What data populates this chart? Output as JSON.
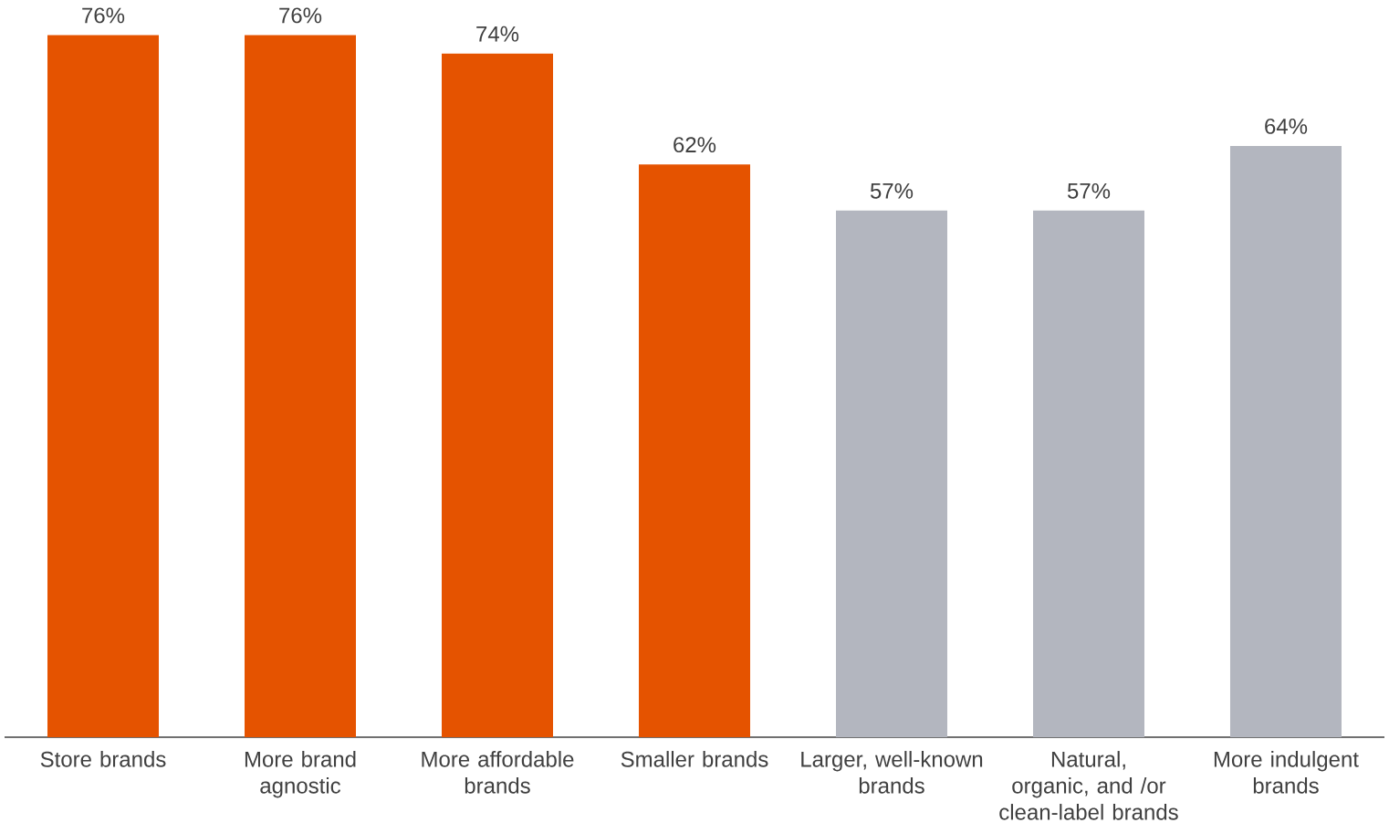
{
  "chart_data": {
    "type": "bar",
    "categories": [
      "Store brands",
      "More brand agnostic",
      "More affordable brands",
      "Smaller brands",
      "Larger, well-known brands",
      "Natural, organic, and /or clean-label brands",
      "More indulgent brands"
    ],
    "values": [
      76,
      76,
      74,
      62,
      57,
      57,
      64
    ],
    "value_labels": [
      "76%",
      "76%",
      "74%",
      "62%",
      "57%",
      "57%",
      "64%"
    ],
    "colors": [
      "#e55300",
      "#e55300",
      "#e55300",
      "#e55300",
      "#b3b6bf",
      "#b3b6bf",
      "#b3b6bf"
    ],
    "tick_labels": "x"
  }
}
